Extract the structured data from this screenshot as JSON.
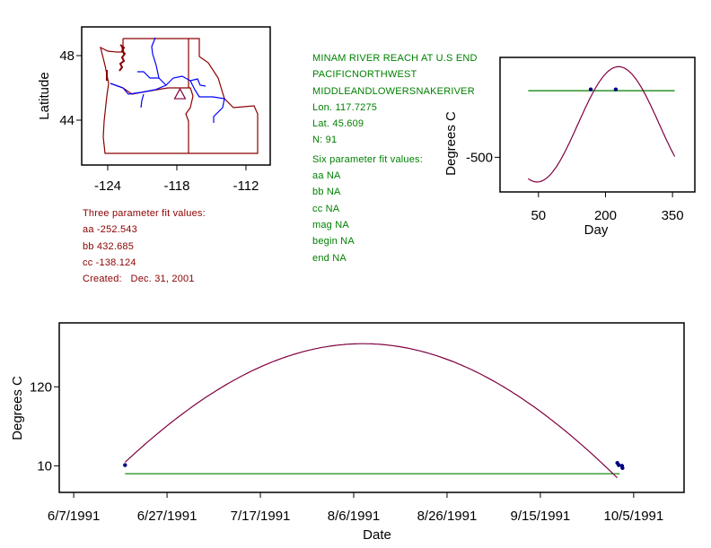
{
  "site": {
    "name": "MINAM RIVER REACH AT U.S END",
    "region": "PACIFICNORTHWEST",
    "basin": "MIDDLEANDLOWERSNAKERIVER",
    "lon": "Lon. 117.7275",
    "lat": "Lat. 45.609",
    "n": "N: 91"
  },
  "three_param": {
    "title": "Three parameter fit values:",
    "aa": "aa -252.543",
    "bb": "bb 432.685",
    "cc": "cc -138.124",
    "created": "Created:   Dec. 31, 2001"
  },
  "six_param": {
    "title": "Six parameter fit values:",
    "aa": "aa NA",
    "bb": "bb NA",
    "cc": "cc NA",
    "mag": "mag NA",
    "begin": "begin NA",
    "end": "end NA"
  },
  "colors": {
    "fit": "#800040",
    "mean": "#008000",
    "points": "#000080",
    "border": "#8b0000",
    "river": "#0000ff"
  },
  "chart_data": [
    {
      "type": "map",
      "ylabel": "Latitude",
      "xticks": [
        "-124",
        "-118",
        "-112"
      ],
      "xtick_values": [
        -124,
        -118,
        -112
      ],
      "yticks": [
        "48",
        "44"
      ],
      "ytick_values": [
        48,
        44
      ],
      "site_marker": {
        "lon": -117.7275,
        "lat": 45.609,
        "symbol": "triangle"
      }
    },
    {
      "type": "line",
      "xlabel": "Day",
      "ylabel": "Degrees C",
      "xticks": [
        "50",
        "200",
        "350"
      ],
      "xtick_values": [
        50,
        200,
        350
      ],
      "yticks": [
        "-500"
      ],
      "ytick_values": [
        -500
      ],
      "ylim": [
        -760,
        250
      ],
      "xlim": [
        -36,
        400
      ],
      "fit": {
        "aa": -252.543,
        "bb": 432.685,
        "cc": -138.124,
        "x_range": [
          27,
          355
        ]
      },
      "mean_line": {
        "value": 0,
        "x_range": [
          27,
          355
        ]
      },
      "points": [
        {
          "x": 167,
          "y": 10
        },
        {
          "x": 223,
          "y": 10
        }
      ]
    },
    {
      "type": "line",
      "xlabel": "Date",
      "ylabel": "Degrees C",
      "xticks": [
        "6/7/1991",
        "6/27/1991",
        "7/17/1991",
        "8/6/1991",
        "8/26/1991",
        "9/15/1991",
        "10/5/1991"
      ],
      "xtick_days": [
        0,
        20,
        40,
        60,
        80,
        100,
        120
      ],
      "yticks": [
        "10",
        "120"
      ],
      "ytick_values": [
        10,
        120
      ],
      "xlim": [
        -3.1,
        130.8
      ],
      "ylim": [
        -27,
        209
      ],
      "fit": {
        "mean": -277,
        "amp": 457,
        "peak_day": 62,
        "x_range": [
          11,
          117
        ]
      },
      "mean_line": {
        "value": -1,
        "x_range": [
          11,
          117
        ]
      },
      "points": [
        {
          "x": 11,
          "y": 11
        },
        {
          "x": 116.5,
          "y": 14
        },
        {
          "x": 116.8,
          "y": 11
        },
        {
          "x": 117.5,
          "y": 10
        },
        {
          "x": 117.6,
          "y": 7
        }
      ]
    }
  ]
}
